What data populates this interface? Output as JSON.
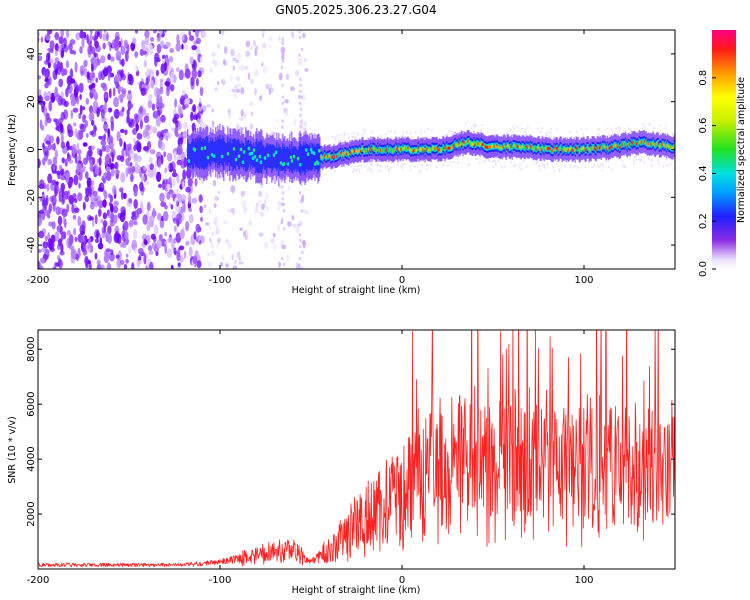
{
  "title": "GN05.2025.306.23.27.G04",
  "chart_data": [
    {
      "type": "heatmap",
      "xlabel": "Height of straight line (km)",
      "ylabel": "Frequency (Hz)",
      "xlim": [
        -200,
        150
      ],
      "ylim": [
        -50,
        50
      ],
      "xticks": [
        -200,
        -100,
        0,
        100
      ],
      "xtick_labels": [
        "-200",
        "-100",
        "0",
        "100"
      ],
      "yticks": [
        -40,
        -20,
        0,
        20,
        40
      ],
      "ytick_labels": [
        "-40",
        "-20",
        "0",
        "20",
        "40"
      ],
      "colorbar": {
        "label": "Normalized spectral amplitude",
        "range": [
          0,
          1
        ],
        "ticks": [
          0,
          0.2,
          0.4,
          0.6,
          0.8
        ],
        "tick_labels": [
          "0.0",
          "0.2",
          "0.4",
          "0.6",
          "0.8"
        ]
      },
      "ridge": [
        [
          -115,
          -2
        ],
        [
          -100,
          -1
        ],
        [
          -80,
          -3
        ],
        [
          -60,
          -4
        ],
        [
          -40,
          -3
        ],
        [
          -20,
          0
        ],
        [
          0,
          0
        ],
        [
          20,
          0
        ],
        [
          35,
          3
        ],
        [
          50,
          1
        ],
        [
          70,
          1
        ],
        [
          85,
          0
        ],
        [
          100,
          0
        ],
        [
          115,
          1
        ],
        [
          130,
          3
        ],
        [
          150,
          1
        ]
      ]
    },
    {
      "type": "line",
      "xlabel": "Height of straight line (km)",
      "ylabel": "SNR (10 * v/v)",
      "xlim": [
        -200,
        150
      ],
      "ylim": [
        0,
        8700
      ],
      "xticks": [
        -200,
        -100,
        0,
        100
      ],
      "xtick_labels": [
        "-200",
        "-100",
        "0",
        "100"
      ],
      "yticks": [
        2000,
        4000,
        6000,
        8000
      ],
      "ytick_labels": [
        "2000",
        "4000",
        "6000",
        "8000"
      ],
      "series": [
        {
          "name": "SNR",
          "color": "#ff2020",
          "envelope_x": [
            -200,
            -120,
            -100,
            -80,
            -60,
            -50,
            -40,
            -30,
            -20,
            -10,
            0,
            10,
            20,
            30,
            40,
            50,
            60,
            80,
            100,
            110,
            120,
            135,
            150
          ],
          "envelope_mean": [
            150,
            150,
            250,
            500,
            700,
            250,
            700,
            1300,
            1900,
            2300,
            2700,
            3100,
            3500,
            3800,
            4000,
            3800,
            3700,
            3600,
            3700,
            3800,
            3500,
            3700,
            3500
          ]
        }
      ]
    }
  ]
}
